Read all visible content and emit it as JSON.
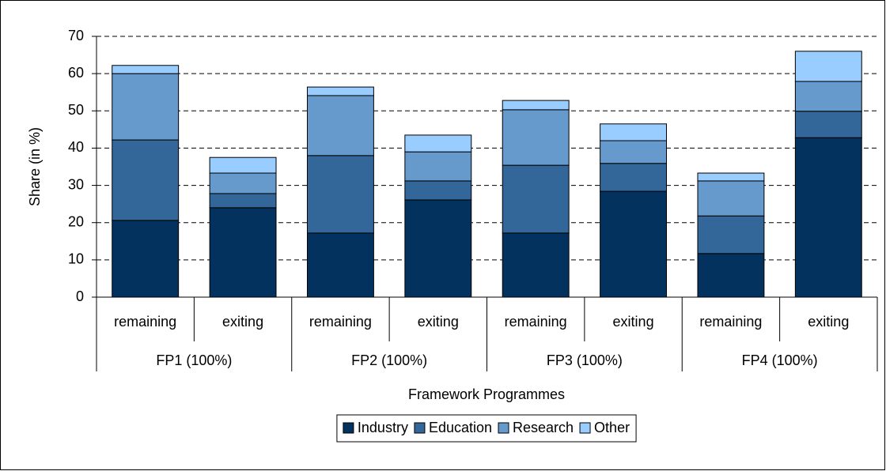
{
  "chart_data": {
    "type": "stacked-bar",
    "x_label": "Framework Programmes",
    "y_label": "Share (in %)",
    "categories": [
      "remaining",
      "exiting",
      "remaining",
      "exiting",
      "remaining",
      "exiting",
      "remaining",
      "exiting"
    ],
    "groups": [
      "FP1 (100%)",
      "FP2 (100%)",
      "FP3 (100%)",
      "FP4 (100%)"
    ],
    "series": [
      {
        "name": "Industry",
        "color": "#04325f",
        "values": [
          20.6,
          24.0,
          17.2,
          26.1,
          17.2,
          28.4,
          11.7,
          42.8
        ]
      },
      {
        "name": "Education",
        "color": "#336699",
        "values": [
          21.6,
          3.8,
          20.8,
          5.1,
          18.2,
          7.5,
          10.1,
          7.1
        ]
      },
      {
        "name": "Research",
        "color": "#6699cc",
        "values": [
          17.8,
          5.5,
          16.1,
          7.8,
          14.9,
          6.1,
          9.4,
          8.0
        ]
      },
      {
        "name": "Other",
        "color": "#99ccff",
        "values": [
          2.2,
          4.2,
          2.3,
          4.5,
          2.5,
          4.5,
          2.1,
          8.1
        ]
      }
    ],
    "ylim": [
      0,
      70
    ],
    "yticks": [
      0,
      10,
      20,
      30,
      40,
      50,
      60,
      70
    ],
    "grid": true,
    "legend": "bottom"
  }
}
